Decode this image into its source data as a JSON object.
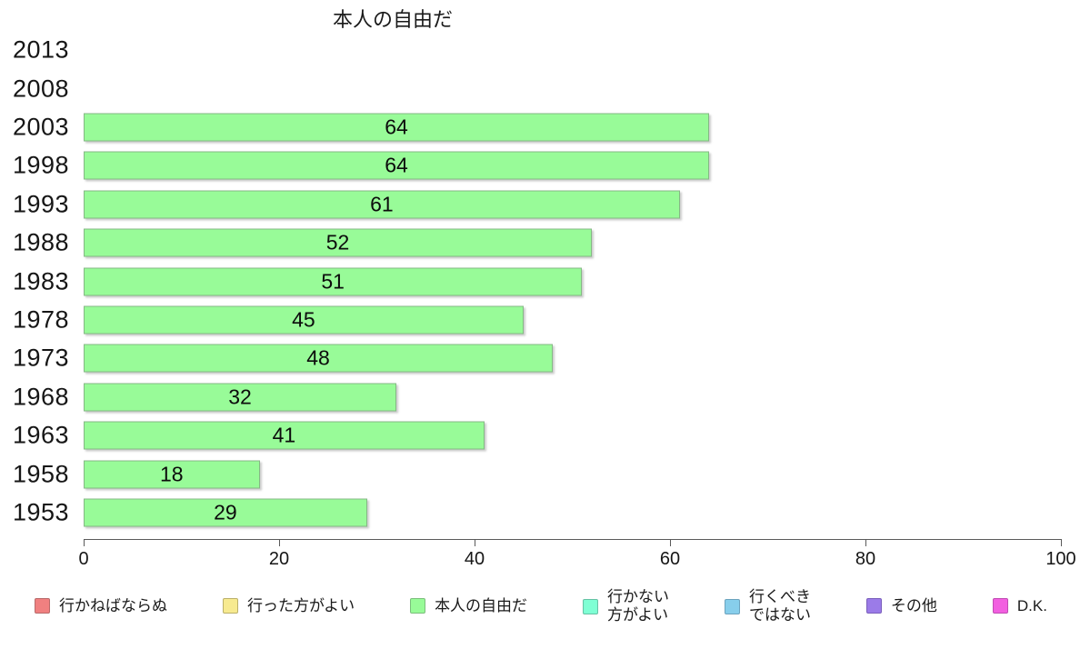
{
  "chart_data": {
    "type": "bar",
    "orientation": "horizontal",
    "title": "本人の自由だ",
    "series_name": "本人の自由だ",
    "categories": [
      "2013",
      "2008",
      "2003",
      "1998",
      "1993",
      "1988",
      "1983",
      "1978",
      "1973",
      "1968",
      "1963",
      "1958",
      "1953"
    ],
    "values": [
      null,
      null,
      64,
      64,
      61,
      52,
      51,
      45,
      48,
      32,
      41,
      18,
      29
    ],
    "value_labels_inside_bars": true,
    "xlim": [
      0,
      100
    ],
    "x_ticks": [
      0,
      20,
      40,
      60,
      80,
      100
    ],
    "grid": false,
    "bar_fill": "#98FB98",
    "bar_border": "#85B885",
    "legend_position": "bottom",
    "legend": [
      {
        "label": "行かねばならぬ",
        "color": "#F08080",
        "border": "#B86A6A"
      },
      {
        "label": "行った方がよい",
        "color": "#F7EA90",
        "border": "#BBB06A"
      },
      {
        "label": "本人の自由だ",
        "color": "#98FB98",
        "border": "#7CBE7C"
      },
      {
        "label": "行かない\n方がよい",
        "color": "#7FFFD4",
        "border": "#66C2A4"
      },
      {
        "label": "行くべき\nではない",
        "color": "#87CEEB",
        "border": "#6CA3BD"
      },
      {
        "label": "その他",
        "color": "#9B7BE8",
        "border": "#7A5FBC"
      },
      {
        "label": "D.K.",
        "color": "#F25FE0",
        "border": "#C04BB3"
      }
    ]
  }
}
